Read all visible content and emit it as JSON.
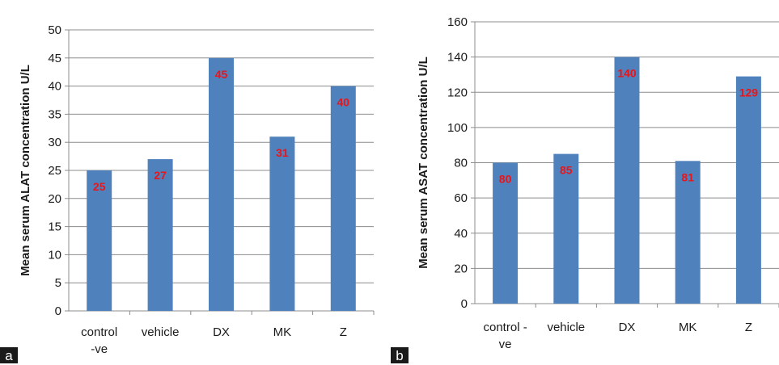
{
  "chart_data": [
    {
      "panel_label": "a",
      "type": "bar",
      "ylabel": "Mean serum ALAT concentration  U/L",
      "categories": [
        [
          "control",
          "-ve"
        ],
        [
          "vehicle"
        ],
        [
          "DX"
        ],
        [
          "MK"
        ],
        [
          "Z"
        ]
      ],
      "values": [
        25,
        27,
        45,
        31,
        40
      ],
      "data_labels": [
        "25",
        "27",
        "45",
        "31",
        "40"
      ],
      "ylim": [
        0,
        50
      ],
      "yticks": [
        0,
        5,
        10,
        15,
        20,
        25,
        30,
        35,
        40,
        45,
        50
      ],
      "grid": true,
      "bar_color": "#4f81bd",
      "label_color": "#e8151b"
    },
    {
      "panel_label": "b",
      "type": "bar",
      "ylabel": "Mean serum ASAT concentration  U/L",
      "categories": [
        [
          "control -",
          "ve"
        ],
        [
          "vehicle"
        ],
        [
          "DX"
        ],
        [
          "MK"
        ],
        [
          "Z"
        ]
      ],
      "values": [
        80,
        85,
        140,
        81,
        129
      ],
      "data_labels": [
        "80",
        "85",
        "140",
        "81",
        "129"
      ],
      "ylim": [
        0,
        160
      ],
      "yticks": [
        0,
        20,
        40,
        60,
        80,
        100,
        120,
        140,
        160
      ],
      "grid": true,
      "bar_color": "#4f81bd",
      "label_color": "#e8151b"
    }
  ]
}
